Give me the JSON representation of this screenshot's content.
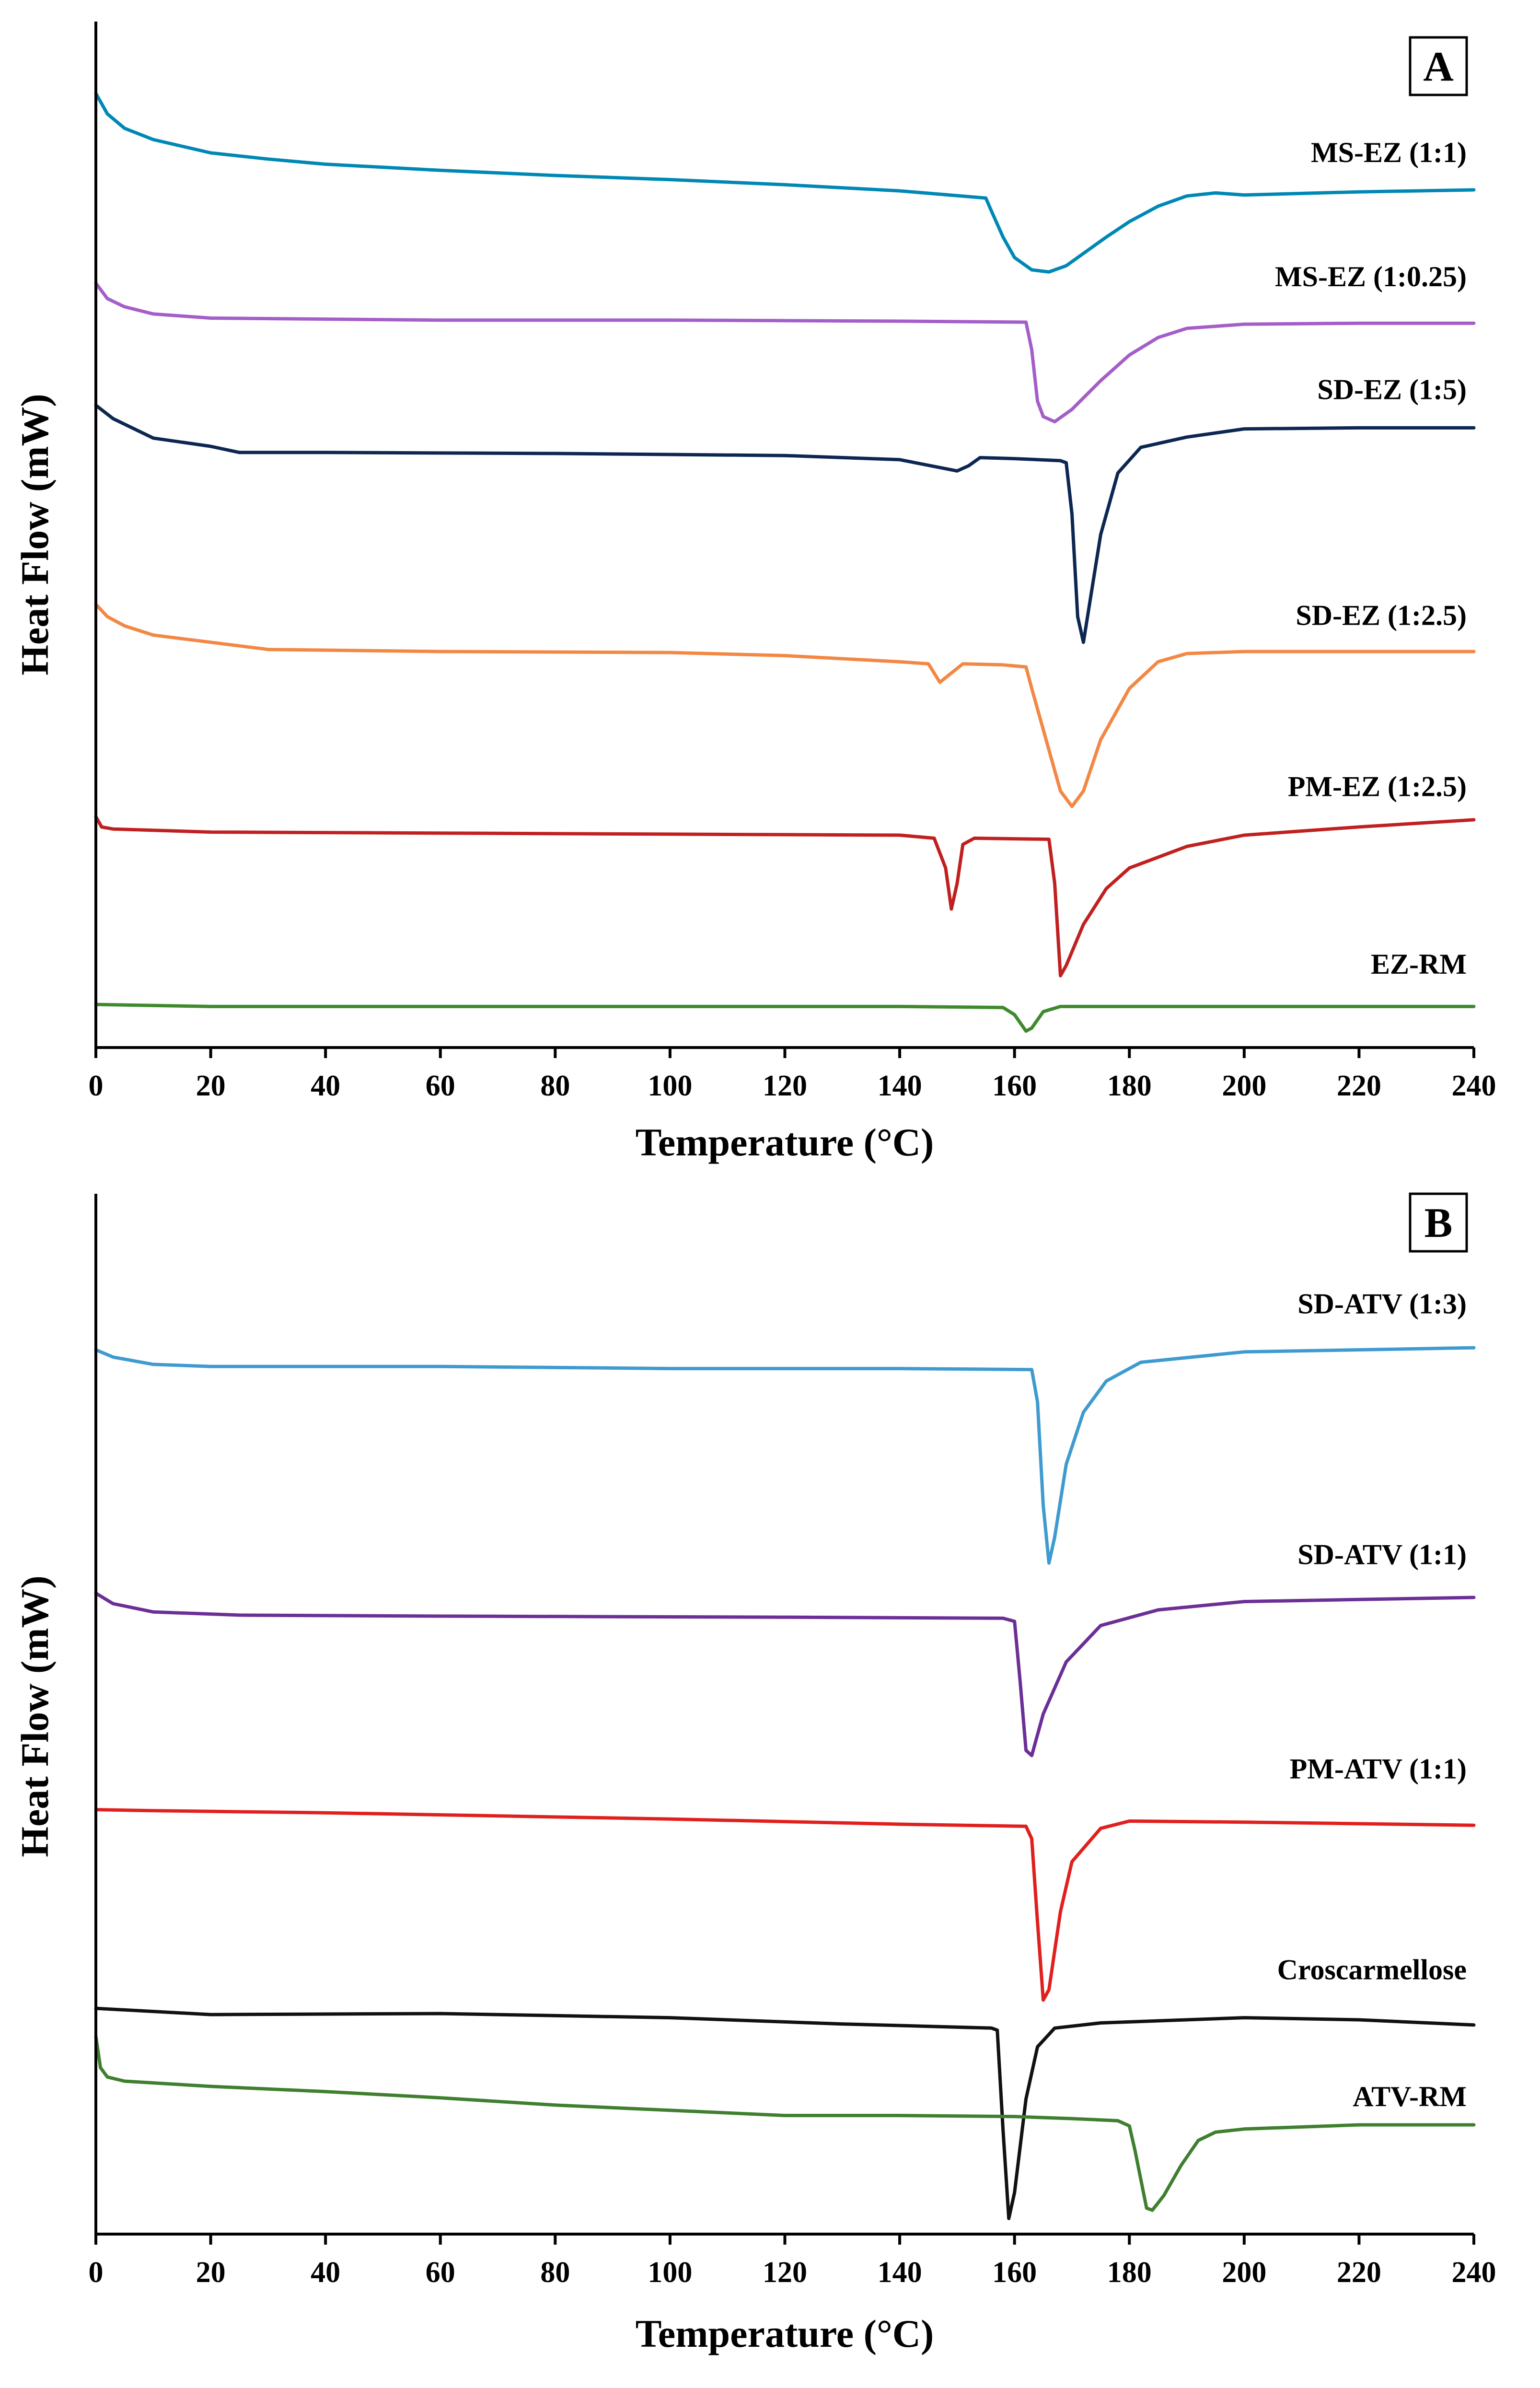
{
  "chart_data": [
    {
      "type": "line",
      "panel_label": "A",
      "title": "",
      "xlabel": "Temperature  (°C)",
      "ylabel": "Heat Flow (mW)",
      "xlim": [
        0,
        240
      ],
      "xticks": [
        0,
        20,
        40,
        60,
        80,
        100,
        120,
        140,
        160,
        180,
        200,
        220,
        240
      ],
      "ylim": [
        0,
        100
      ],
      "y_ticks_shown": false,
      "grid": false,
      "series": [
        {
          "name": "MS-EZ (1:1)",
          "color": "#0088b5",
          "label_at": [
            240,
            86.3
          ],
          "points": [
            [
              0,
              93
            ],
            [
              2,
              91
            ],
            [
              5,
              89.6
            ],
            [
              10,
              88.5
            ],
            [
              20,
              87.2
            ],
            [
              30,
              86.6
            ],
            [
              40,
              86.1
            ],
            [
              60,
              85.5
            ],
            [
              80,
              85.0
            ],
            [
              100,
              84.6
            ],
            [
              120,
              84.1
            ],
            [
              140,
              83.5
            ],
            [
              155,
              82.8
            ],
            [
              156,
              81.5
            ],
            [
              158,
              79
            ],
            [
              160,
              77
            ],
            [
              163,
              75.8
            ],
            [
              166,
              75.6
            ],
            [
              169,
              76.2
            ],
            [
              172,
              77.4
            ],
            [
              176,
              79
            ],
            [
              180,
              80.5
            ],
            [
              185,
              82
            ],
            [
              190,
              83
            ],
            [
              195,
              83.3
            ],
            [
              200,
              83.1
            ],
            [
              220,
              83.4
            ],
            [
              240,
              83.6
            ]
          ]
        },
        {
          "name": "MS-EZ (1:0.25)",
          "color": "#a45ec9",
          "label_at": [
            240,
            74.2
          ],
          "points": [
            [
              0,
              74.5
            ],
            [
              2,
              73
            ],
            [
              5,
              72.2
            ],
            [
              10,
              71.5
            ],
            [
              20,
              71.1
            ],
            [
              60,
              70.9
            ],
            [
              100,
              70.9
            ],
            [
              140,
              70.8
            ],
            [
              162,
              70.7
            ],
            [
              163,
              68
            ],
            [
              164,
              63
            ],
            [
              165,
              61.5
            ],
            [
              167,
              61.0
            ],
            [
              170,
              62.2
            ],
            [
              175,
              65
            ],
            [
              180,
              67.5
            ],
            [
              185,
              69.2
            ],
            [
              190,
              70.1
            ],
            [
              200,
              70.5
            ],
            [
              220,
              70.6
            ],
            [
              240,
              70.6
            ]
          ]
        },
        {
          "name": "SD-EZ (1:5)",
          "color": "#0d2752",
          "label_at": [
            240,
            63.2
          ],
          "points": [
            [
              0,
              62.6
            ],
            [
              3,
              61.3
            ],
            [
              10,
              59.4
            ],
            [
              20,
              58.6
            ],
            [
              25,
              58
            ],
            [
              40,
              58.0
            ],
            [
              80,
              57.9
            ],
            [
              120,
              57.7
            ],
            [
              140,
              57.3
            ],
            [
              150,
              56.2
            ],
            [
              152,
              56.7
            ],
            [
              154,
              57.5
            ],
            [
              160,
              57.4
            ],
            [
              168,
              57.2
            ],
            [
              169,
              57.0
            ],
            [
              170,
              52
            ],
            [
              171,
              42
            ],
            [
              172,
              39.5
            ],
            [
              173,
              43
            ],
            [
              175,
              50
            ],
            [
              178,
              56
            ],
            [
              182,
              58.5
            ],
            [
              190,
              59.5
            ],
            [
              200,
              60.3
            ],
            [
              220,
              60.4
            ],
            [
              240,
              60.4
            ]
          ]
        },
        {
          "name": "SD-EZ (1:2.5)",
          "color": "#f28844",
          "label_at": [
            240,
            41.2
          ],
          "points": [
            [
              0,
              43.2
            ],
            [
              2,
              42
            ],
            [
              5,
              41.1
            ],
            [
              10,
              40.2
            ],
            [
              20,
              39.5
            ],
            [
              30,
              38.8
            ],
            [
              60,
              38.6
            ],
            [
              100,
              38.5
            ],
            [
              120,
              38.2
            ],
            [
              140,
              37.6
            ],
            [
              145,
              37.4
            ],
            [
              147,
              35.6
            ],
            [
              149,
              36.5
            ],
            [
              151,
              37.4
            ],
            [
              158,
              37.3
            ],
            [
              162,
              37.1
            ],
            [
              163,
              35
            ],
            [
              166,
              29
            ],
            [
              168,
              25
            ],
            [
              170,
              23.5
            ],
            [
              172,
              25
            ],
            [
              175,
              30
            ],
            [
              180,
              35
            ],
            [
              185,
              37.6
            ],
            [
              190,
              38.4
            ],
            [
              200,
              38.6
            ],
            [
              240,
              38.6
            ]
          ]
        },
        {
          "name": "PM-EZ (1:2.5)",
          "color": "#c0201f",
          "label_at": [
            240,
            24.5
          ],
          "points": [
            [
              0,
              22.5
            ],
            [
              1,
              21.5
            ],
            [
              3,
              21.3
            ],
            [
              20,
              21.0
            ],
            [
              60,
              20.9
            ],
            [
              100,
              20.8
            ],
            [
              140,
              20.7
            ],
            [
              146,
              20.4
            ],
            [
              148,
              17.5
            ],
            [
              149,
              13.5
            ],
            [
              150,
              16
            ],
            [
              151,
              19.8
            ],
            [
              153,
              20.4
            ],
            [
              166,
              20.3
            ],
            [
              167,
              16
            ],
            [
              168,
              7
            ],
            [
              169,
              8
            ],
            [
              172,
              12
            ],
            [
              176,
              15.5
            ],
            [
              180,
              17.5
            ],
            [
              190,
              19.6
            ],
            [
              200,
              20.7
            ],
            [
              220,
              21.5
            ],
            [
              240,
              22.2
            ]
          ]
        },
        {
          "name": "EZ-RM",
          "color": "#3f8a2f",
          "label_at": [
            240,
            7.2
          ],
          "points": [
            [
              0,
              4.2
            ],
            [
              20,
              4.0
            ],
            [
              60,
              4.0
            ],
            [
              100,
              4.0
            ],
            [
              140,
              4.0
            ],
            [
              158,
              3.9
            ],
            [
              160,
              3.2
            ],
            [
              162,
              1.6
            ],
            [
              163,
              1.9
            ],
            [
              165,
              3.5
            ],
            [
              168,
              4.0
            ],
            [
              200,
              4.0
            ],
            [
              240,
              4.0
            ]
          ]
        }
      ]
    },
    {
      "type": "line",
      "panel_label": "B",
      "title": "",
      "xlabel": "Temperature  (°C)",
      "ylabel": "Heat Flow (mW)",
      "xlim": [
        0,
        240
      ],
      "xticks": [
        0,
        20,
        40,
        60,
        80,
        100,
        120,
        140,
        160,
        180,
        200,
        220,
        240
      ],
      "ylim": [
        0,
        100
      ],
      "y_ticks_shown": false,
      "grid": false,
      "series": [
        {
          "name": "SD-ATV (1:3)",
          "color": "#3f9bcf",
          "label_at": [
            240,
            88.5
          ],
          "points": [
            [
              0,
              85
            ],
            [
              3,
              84.3
            ],
            [
              10,
              83.6
            ],
            [
              20,
              83.4
            ],
            [
              60,
              83.4
            ],
            [
              100,
              83.2
            ],
            [
              140,
              83.2
            ],
            [
              163,
              83.1
            ],
            [
              164,
              80
            ],
            [
              165,
              70
            ],
            [
              166,
              64.5
            ],
            [
              167,
              67
            ],
            [
              169,
              74
            ],
            [
              172,
              79
            ],
            [
              176,
              82
            ],
            [
              182,
              83.8
            ],
            [
              200,
              84.8
            ],
            [
              240,
              85.2
            ]
          ]
        },
        {
          "name": "SD-ATV (1:1)",
          "color": "#6b2f96",
          "label_at": [
            240,
            64.4
          ],
          "points": [
            [
              0,
              61.6
            ],
            [
              3,
              60.6
            ],
            [
              10,
              59.8
            ],
            [
              25,
              59.5
            ],
            [
              60,
              59.4
            ],
            [
              120,
              59.3
            ],
            [
              158,
              59.2
            ],
            [
              160,
              58.9
            ],
            [
              161,
              53
            ],
            [
              162,
              46.5
            ],
            [
              163,
              46
            ],
            [
              165,
              50
            ],
            [
              169,
              55
            ],
            [
              175,
              58.5
            ],
            [
              185,
              60
            ],
            [
              200,
              60.8
            ],
            [
              240,
              61.2
            ]
          ]
        },
        {
          "name": "PM-ATV (1:1)",
          "color": "#e0201e",
          "label_at": [
            240,
            43.8
          ],
          "points": [
            [
              0,
              40.8
            ],
            [
              10,
              40.7
            ],
            [
              40,
              40.5
            ],
            [
              60,
              40.3
            ],
            [
              100,
              39.9
            ],
            [
              140,
              39.4
            ],
            [
              162,
              39.2
            ],
            [
              163,
              38
            ],
            [
              164,
              30
            ],
            [
              165,
              22.5
            ],
            [
              166,
              23.5
            ],
            [
              168,
              31
            ],
            [
              170,
              35.8
            ],
            [
              175,
              39
            ],
            [
              180,
              39.7
            ],
            [
              200,
              39.6
            ],
            [
              240,
              39.3
            ]
          ]
        },
        {
          "name": "Croscarmellose",
          "color": "#111111",
          "label_at": [
            240,
            24.5
          ],
          "points": [
            [
              0,
              21.7
            ],
            [
              20,
              21.1
            ],
            [
              60,
              21.2
            ],
            [
              100,
              20.8
            ],
            [
              130,
              20.2
            ],
            [
              156,
              19.8
            ],
            [
              157,
              19.6
            ],
            [
              158,
              10
            ],
            [
              159,
              1.5
            ],
            [
              160,
              4
            ],
            [
              162,
              13
            ],
            [
              164,
              18
            ],
            [
              167,
              19.8
            ],
            [
              175,
              20.3
            ],
            [
              200,
              20.8
            ],
            [
              220,
              20.6
            ],
            [
              240,
              20.1
            ]
          ]
        },
        {
          "name": "ATV-RM",
          "color": "#3f7f2f",
          "label_at": [
            240,
            12.3
          ],
          "points": [
            [
              0,
              19
            ],
            [
              0.8,
              16
            ],
            [
              2,
              15.1
            ],
            [
              5,
              14.7
            ],
            [
              20,
              14.2
            ],
            [
              40,
              13.7
            ],
            [
              60,
              13.1
            ],
            [
              80,
              12.4
            ],
            [
              100,
              11.9
            ],
            [
              120,
              11.4
            ],
            [
              140,
              11.4
            ],
            [
              160,
              11.3
            ],
            [
              170,
              11.1
            ],
            [
              178,
              10.9
            ],
            [
              180,
              10.4
            ],
            [
              181,
              8
            ],
            [
              183,
              2.5
            ],
            [
              184,
              2.3
            ],
            [
              186,
              3.7
            ],
            [
              189,
              6.6
            ],
            [
              192,
              9
            ],
            [
              195,
              9.8
            ],
            [
              200,
              10.1
            ],
            [
              220,
              10.5
            ],
            [
              240,
              10.5
            ]
          ]
        }
      ]
    }
  ]
}
